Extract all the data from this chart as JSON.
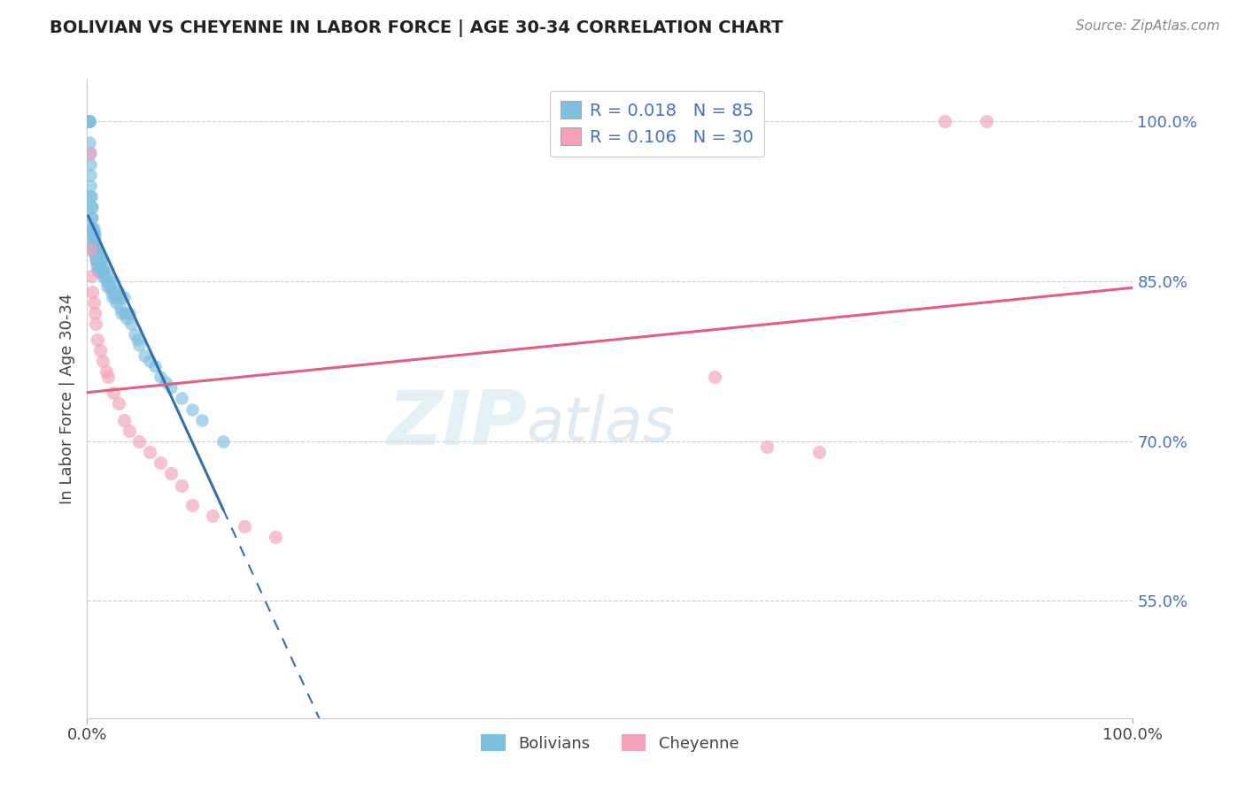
{
  "title": "BOLIVIAN VS CHEYENNE IN LABOR FORCE | AGE 30-34 CORRELATION CHART",
  "source": "Source: ZipAtlas.com",
  "ylabel": "In Labor Force | Age 30-34",
  "xmin": 0.0,
  "xmax": 1.0,
  "ymin": 0.44,
  "ymax": 1.04,
  "yticks": [
    0.55,
    0.7,
    0.85,
    1.0
  ],
  "ytick_labels": [
    "55.0%",
    "70.0%",
    "85.0%",
    "100.0%"
  ],
  "xtick_labels": [
    "0.0%",
    "100.0%"
  ],
  "blue_R": 0.018,
  "blue_N": 85,
  "pink_R": 0.106,
  "pink_N": 30,
  "blue_color": "#7fbfdf",
  "pink_color": "#f4a0b8",
  "blue_trend_color": "#3070b0",
  "pink_trend_color": "#e06080",
  "watermark_text": "ZIPatlas",
  "blue_scatter_x": [
    0.001,
    0.001,
    0.001,
    0.002,
    0.002,
    0.002,
    0.002,
    0.003,
    0.003,
    0.003,
    0.003,
    0.003,
    0.004,
    0.004,
    0.004,
    0.004,
    0.005,
    0.005,
    0.005,
    0.005,
    0.005,
    0.005,
    0.005,
    0.006,
    0.006,
    0.006,
    0.006,
    0.007,
    0.007,
    0.007,
    0.007,
    0.008,
    0.008,
    0.008,
    0.009,
    0.009,
    0.009,
    0.01,
    0.01,
    0.01,
    0.01,
    0.011,
    0.011,
    0.012,
    0.012,
    0.013,
    0.013,
    0.014,
    0.015,
    0.015,
    0.016,
    0.017,
    0.018,
    0.019,
    0.02,
    0.021,
    0.022,
    0.023,
    0.024,
    0.025,
    0.026,
    0.027,
    0.028,
    0.03,
    0.031,
    0.032,
    0.033,
    0.035,
    0.036,
    0.038,
    0.04,
    0.042,
    0.045,
    0.048,
    0.05,
    0.055,
    0.06,
    0.065,
    0.07,
    0.075,
    0.08,
    0.09,
    0.1,
    0.11,
    0.13
  ],
  "blue_scatter_y": [
    1.0,
    1.0,
    1.0,
    1.0,
    1.0,
    1.0,
    0.98,
    0.97,
    0.96,
    0.95,
    0.94,
    0.93,
    0.93,
    0.92,
    0.91,
    0.9,
    0.92,
    0.91,
    0.9,
    0.895,
    0.89,
    0.885,
    0.88,
    0.9,
    0.895,
    0.885,
    0.88,
    0.895,
    0.89,
    0.88,
    0.875,
    0.88,
    0.875,
    0.87,
    0.875,
    0.87,
    0.865,
    0.88,
    0.875,
    0.87,
    0.86,
    0.87,
    0.86,
    0.875,
    0.865,
    0.87,
    0.86,
    0.86,
    0.87,
    0.855,
    0.86,
    0.855,
    0.85,
    0.845,
    0.86,
    0.85,
    0.845,
    0.84,
    0.835,
    0.85,
    0.84,
    0.835,
    0.83,
    0.84,
    0.835,
    0.825,
    0.82,
    0.835,
    0.82,
    0.815,
    0.82,
    0.81,
    0.8,
    0.795,
    0.79,
    0.78,
    0.775,
    0.77,
    0.76,
    0.755,
    0.75,
    0.74,
    0.73,
    0.72,
    0.7
  ],
  "pink_scatter_x": [
    0.002,
    0.003,
    0.004,
    0.005,
    0.006,
    0.007,
    0.008,
    0.01,
    0.012,
    0.015,
    0.018,
    0.02,
    0.025,
    0.03,
    0.035,
    0.04,
    0.05,
    0.06,
    0.07,
    0.08,
    0.09,
    0.1,
    0.12,
    0.15,
    0.18,
    0.6,
    0.65,
    0.7,
    0.82,
    0.86
  ],
  "pink_scatter_y": [
    0.97,
    0.88,
    0.855,
    0.84,
    0.83,
    0.82,
    0.81,
    0.795,
    0.785,
    0.775,
    0.765,
    0.76,
    0.745,
    0.735,
    0.72,
    0.71,
    0.7,
    0.69,
    0.68,
    0.67,
    0.658,
    0.64,
    0.63,
    0.62,
    0.61,
    0.76,
    0.695,
    0.69,
    1.0,
    1.0
  ],
  "blue_trend_x_solid_start": 0.001,
  "blue_trend_x_solid_end": 0.13,
  "pink_trend_start_y": 0.753,
  "pink_trend_end_y": 0.805
}
